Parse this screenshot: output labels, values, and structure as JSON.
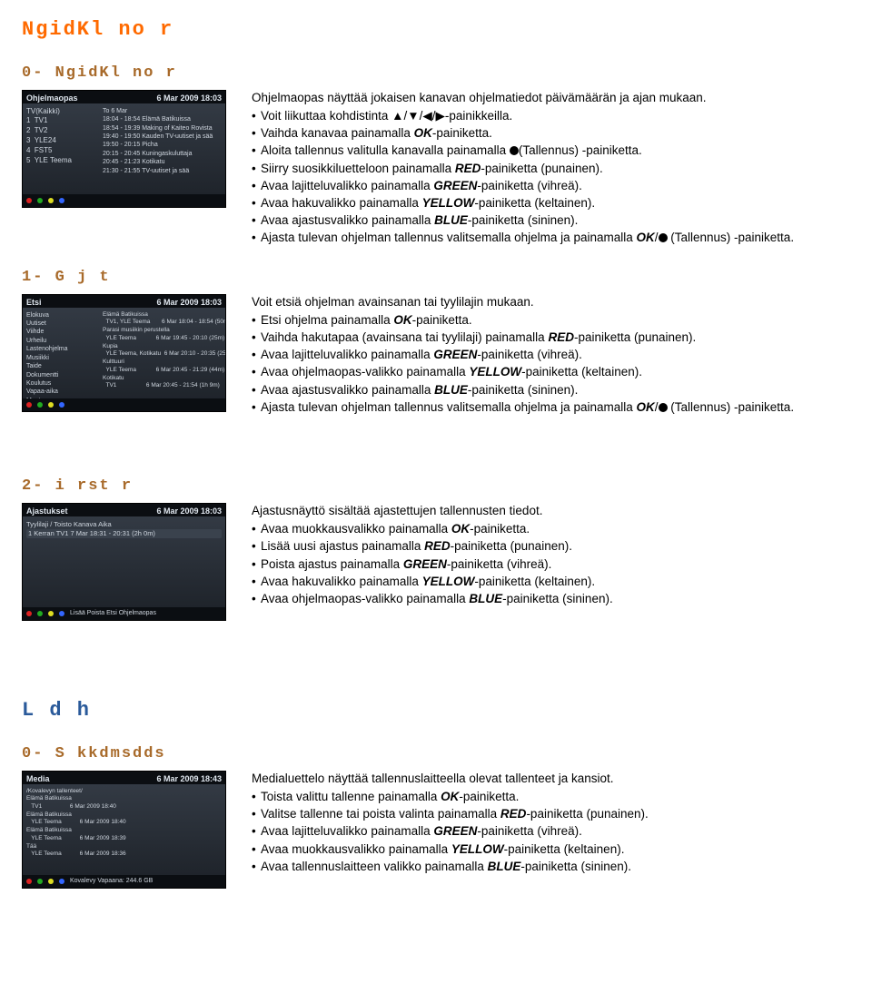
{
  "colors": {
    "orange": "#ff6a00",
    "brown": "#a86a2a",
    "blue_heading": "#2a5a9a",
    "thumb_bg": "#1a1f26",
    "dot_red": "#d22",
    "dot_green": "#2a2",
    "dot_yellow": "#dd2",
    "dot_blue": "#36f"
  },
  "h1_main": "NgidKl no r",
  "sec0": {
    "heading": "0- NgidKl no r",
    "intro": "Ohjelmaopas näyttää jokaisen kanavan ohjelmatiedot päivämäärän ja ajan mukaan.",
    "b0_pre": "Voit liikuttaa kohdistinta ",
    "b0_suf": "-painikkeilla.",
    "b1_pre": "Vaihda kanavaa painamalla ",
    "b1_ok": "OK",
    "b1_suf": "-painiketta.",
    "b2_pre": "Aloita tallennus valitulla kanavalla painamalla ",
    "b2_suf": "(Tallennus) -painiketta.",
    "b3_pre": "Siirry suosikkiluetteloon painamalla ",
    "b3_key": "RED",
    "b3_suf": "-painiketta (punainen).",
    "b4_pre": "Avaa lajitteluvalikko painamalla ",
    "b4_key": "GREEN",
    "b4_suf": "-painiketta (vihreä).",
    "b5_pre": "Avaa hakuvalikko painamalla ",
    "b5_key": "YELLOW",
    "b5_suf": "-painiketta (keltainen).",
    "b6_pre": "Avaa ajastusvalikko painamalla ",
    "b6_key": "BLUE",
    "b6_suf": "-painiketta (sininen).",
    "b7_pre": "Ajasta tulevan ohjelman tallennus valitsemalla ohjelma ja painamalla ",
    "b7_ok": "OK",
    "b7_suf": " (Tallennus) -painiketta.",
    "thumb_title": "Ohjelmaopas",
    "thumb_date": "6 Mar 2009 18:03",
    "thumb_rows_l": "TV(Kaikki)\n1  TV1\n2  TV2\n3  YLE24\n4  FST5\n5  YLE Teema",
    "thumb_rows_r": "To 6 Mar\n18:04 - 18:54 Elämä Batikuissa\n18:54 - 19:39 Making of Kaiteo Rovista\n19:40 - 19:50 Kauden TV-uutiset ja sää\n19:50 - 20:15 Picha\n20:15 - 20:45 Kuningaskuluttaja\n20:45 - 21:23 Kotikatu\n21:30 - 21:55 TV-uutiset ja sää"
  },
  "sec1": {
    "heading": "1- G j t",
    "intro": "Voit etsiä ohjelman avainsanan tai tyylilajin mukaan.",
    "b0_pre": "Etsi ohjelma painamalla ",
    "b0_ok": "OK",
    "b0_suf": "-painiketta.",
    "b1_pre": "Vaihda hakutapaa (avainsana tai tyylilaji) painamalla ",
    "b1_key": "RED",
    "b1_suf": "-painiketta (punainen).",
    "b2_pre": "Avaa lajitteluvalikko painamalla ",
    "b2_key": "GREEN",
    "b2_suf": "-painiketta (vihreä).",
    "b3_pre": "Avaa ohjelmaopas-valikko painamalla ",
    "b3_key": "YELLOW",
    "b3_suf": "-painiketta (keltainen).",
    "b4_pre": "Avaa ajastusvalikko painamalla ",
    "b4_key": "BLUE",
    "b4_suf": "-painiketta (sininen).",
    "b5_pre": "Ajasta tulevan ohjelman tallennus valitsemalla ohjelma ja painamalla ",
    "b5_ok": "OK",
    "b5_suf": " (Tallennus) -painiketta.",
    "thumb_title": "Etsi",
    "thumb_date": "6 Mar 2009 18:03",
    "cats": "Elokuva\nUutiset\nViihde\nUrheilu\nLastenohjelma\nMusiikki\nTaide\nDokumentti\nKoulutus\nVapaa-aika\nMuut",
    "results": "Elämä Batikuissa\n  TV1, YLE Teema       6 Mar 18:04 - 18:54 (50m)\nParasi musiikin perustella\n  YLE Teema            6 Mar 19:45 - 20:10 (25m)\nKupia\n  YLE Teema, Kotikatu  6 Mar 20:10 - 20:35 (25m)\nKulttuuri\n  YLE Teema            6 Mar 20:45 - 21:29 (44m)\nKotikatu\n  TV1                  6 Mar 20:45 - 21:54 (1h 9m)"
  },
  "sec2": {
    "heading": "2-  i rst r",
    "intro": "Ajastusnäyttö sisältää ajastettujen tallennusten tiedot.",
    "b0_pre": "Avaa muokkausvalikko painamalla ",
    "b0_ok": "OK",
    "b0_suf": "-painiketta.",
    "b1_pre": "Lisää uusi ajastus painamalla ",
    "b1_key": "RED",
    "b1_suf": "-painiketta (punainen).",
    "b2_pre": "Poista ajastus painamalla ",
    "b2_key": "GREEN",
    "b2_suf": "-painiketta (vihreä).",
    "b3_pre": "Avaa hakuvalikko painamalla ",
    "b3_key": "YELLOW",
    "b3_suf": "-painiketta (keltainen).",
    "b4_pre": "Avaa ohjelmaopas-valikko painamalla ",
    "b4_key": "BLUE",
    "b4_suf": "-painiketta (sininen).",
    "thumb_title": "Ajastukset",
    "thumb_date": "6 Mar 2009 18:03",
    "thumb_hdr": "Tyylilaji / Toisto   Kanava   Aika",
    "thumb_row": "1   Kerran        TV1       7 Mar 18:31 - 20:31 (2h 0m)",
    "bot": "Lisää    Poista    Etsi    Ohjelmaopas"
  },
  "h1_media": "L d  h",
  "sec3": {
    "heading": "0- S  kkdmsdds",
    "intro": "Medialuettelo näyttää tallennuslaitteella olevat tallenteet ja kansiot.",
    "b0_pre": "Toista valittu tallenne painamalla ",
    "b0_ok": "OK",
    "b0_suf": "-painiketta.",
    "b1_pre": "Valitse tallenne tai poista valinta painamalla ",
    "b1_key": "RED",
    "b1_suf": "-painiketta (punainen).",
    "b2_pre": "Avaa lajitteluvalikko painamalla ",
    "b2_key": "GREEN",
    "b2_suf": "-painiketta (vihreä).",
    "b3_pre": "Avaa muokkausvalikko painamalla ",
    "b3_key": "YELLOW",
    "b3_suf": "-painiketta (keltainen).",
    "b4_pre": "Avaa tallennuslaitteen valikko painamalla ",
    "b4_key": "BLUE",
    "b4_suf": "-painiketta (sininen).",
    "thumb_title": "Media",
    "thumb_date": "6 Mar 2009 18:43",
    "thumb_sub": "/Kovalevyn tallenteet/",
    "thumb_rows": "Elämä Batikuissa\n   TV1                 6 Mar 2009 18:40\nElämä Batikuissa\n   YLE Teema           6 Mar 2009 18:40\nElämä Batikuissa\n   YLE Teema           6 Mar 2009 18:39\nTää\n   YLE Teema           6 Mar 2009 18:36",
    "thumb_stat": "Kovalevy    Vapaana: 244.6 GB"
  },
  "glyphs": {
    "up": "▲",
    "down": "▼",
    "left": "◀",
    "right": "▶",
    "slash": "/"
  }
}
